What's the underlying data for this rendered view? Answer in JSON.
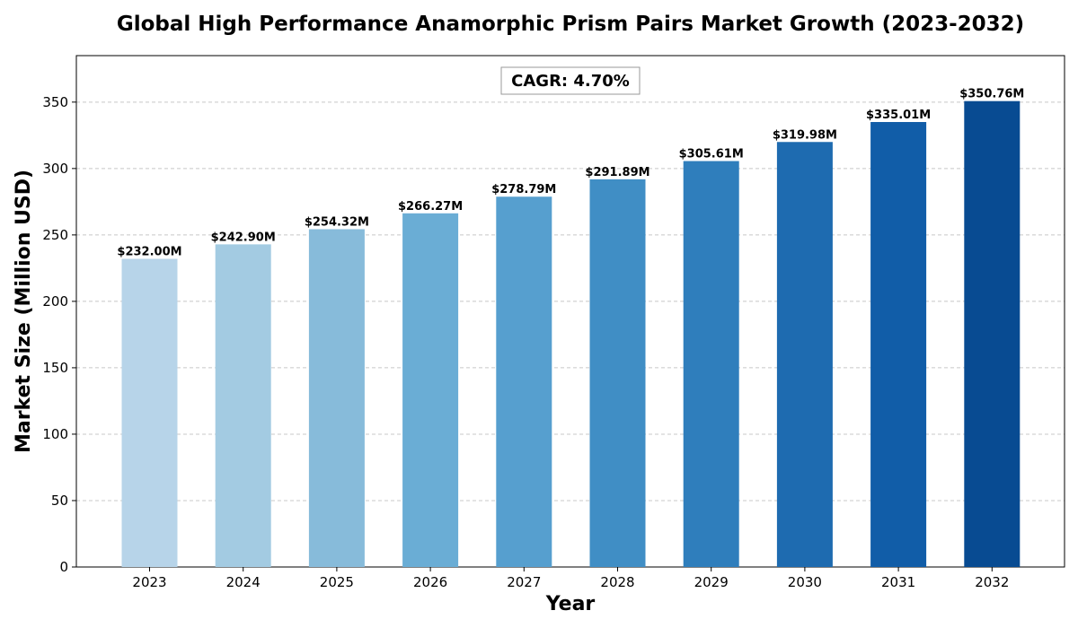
{
  "chart_data": {
    "type": "bar",
    "title": "Global High Performance Anamorphic Prism Pairs Market Growth (2023-2032)",
    "xlabel": "Year",
    "ylabel": "Market Size (Million USD)",
    "categories": [
      "2023",
      "2024",
      "2025",
      "2026",
      "2027",
      "2028",
      "2029",
      "2030",
      "2031",
      "2032"
    ],
    "values": [
      232.0,
      242.9,
      254.32,
      266.27,
      278.79,
      291.89,
      305.61,
      319.98,
      335.01,
      350.76
    ],
    "value_labels": [
      "$232.00M",
      "$242.90M",
      "$254.32M",
      "$266.27M",
      "$278.79M",
      "$291.89M",
      "$305.61M",
      "$319.98M",
      "$335.01M",
      "$350.76M"
    ],
    "ylim": [
      0,
      385
    ],
    "yticks": [
      0,
      50,
      100,
      150,
      200,
      250,
      300,
      350
    ],
    "grid": true,
    "annotation": "CAGR: 4.70%",
    "colors": [
      "#b7d4e9",
      "#a3cbe2",
      "#87bbda",
      "#6aadd5",
      "#569fcf",
      "#408ec5",
      "#2f7ebc",
      "#1e6bb0",
      "#115da8",
      "#084b92"
    ]
  }
}
